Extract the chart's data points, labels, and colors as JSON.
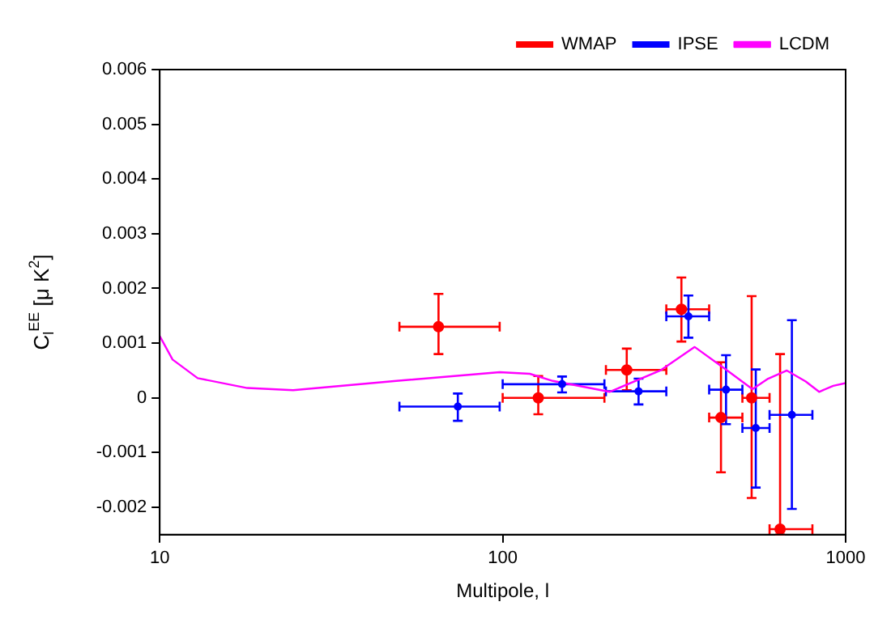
{
  "chart_data": {
    "type": "scatter",
    "xlabel": "Multipole, l",
    "ylabel": "C$_{l}$$^{EE}$ [μ K$^{2}$]",
    "log": "x",
    "xlim": [
      10,
      1000
    ],
    "xticks": [
      10,
      100,
      1000
    ],
    "ylim": [
      -0.0025,
      0.006
    ],
    "yticks": [
      -0.002,
      -0.001,
      0,
      0.001,
      0.002,
      0.003,
      0.004,
      0.005,
      0.006
    ],
    "grid": false,
    "legend": "top right",
    "series": [
      {
        "name": "WMAP",
        "type": "scatter",
        "color": "#ff0000",
        "marker": "circle",
        "x": [
          65,
          127,
          230,
          332,
          433,
          532,
          644
        ],
        "values": [
          0.0013,
          0,
          0.00051,
          0.00162,
          -0.00036,
          0,
          -0.0024
        ],
        "errors": [
          [
            0.0008,
            0.0019
          ],
          [
            -0.0003,
            0.0004
          ],
          [
            0.00014,
            0.0009
          ],
          [
            0.00103,
            0.0022
          ],
          [
            -0.00136,
            0.00065
          ],
          [
            -0.00183,
            0.00186
          ],
          [
            -0.0025,
            0.0008
          ]
        ],
        "xerrors": [
          [
            50,
            98
          ],
          [
            100,
            198
          ],
          [
            200,
            300
          ],
          [
            300,
            400
          ],
          [
            400,
            500
          ],
          [
            500,
            600
          ],
          [
            600,
            800
          ]
        ]
      },
      {
        "name": "IPSE",
        "type": "scatter",
        "color": "#0000ff",
        "marker": "circle",
        "x": [
          74,
          149,
          249,
          348,
          448,
          547,
          697
        ],
        "values": [
          -0.00016,
          0.00025,
          0.00012,
          0.00149,
          0.00015,
          -0.00055,
          -0.00031
        ],
        "errors": [
          [
            -0.00042,
            8e-05
          ],
          [
            0.0001,
            0.00039
          ],
          [
            -0.00012,
            0.00035
          ],
          [
            0.0011,
            0.00187
          ],
          [
            -0.00048,
            0.00078
          ],
          [
            -0.00164,
            0.00052
          ],
          [
            -0.00203,
            0.00142
          ]
        ],
        "xerrors": [
          [
            50,
            98
          ],
          [
            100,
            198
          ],
          [
            200,
            300
          ],
          [
            300,
            400
          ],
          [
            400,
            500
          ],
          [
            500,
            600
          ],
          [
            600,
            800
          ]
        ]
      },
      {
        "name": "LCDM",
        "type": "line",
        "color": "#ff00ff",
        "marker": "none",
        "line_style": "solid",
        "x": [
          10,
          10.9,
          12.9,
          18,
          24.5,
          49,
          98,
          120,
          140,
          205,
          288,
          363,
          447,
          535,
          594,
          674,
          765,
          837,
          920,
          1000
        ],
        "values": [
          0.00113,
          0.0007,
          0.00036,
          0.00018,
          0.00014,
          0.00031,
          0.00047,
          0.00044,
          0.00031,
          0.00011,
          0.0005,
          0.00093,
          0.00052,
          0.00016,
          0.00035,
          0.0005,
          0.0003,
          0.00011,
          0.00022,
          0.00027
        ]
      }
    ]
  }
}
